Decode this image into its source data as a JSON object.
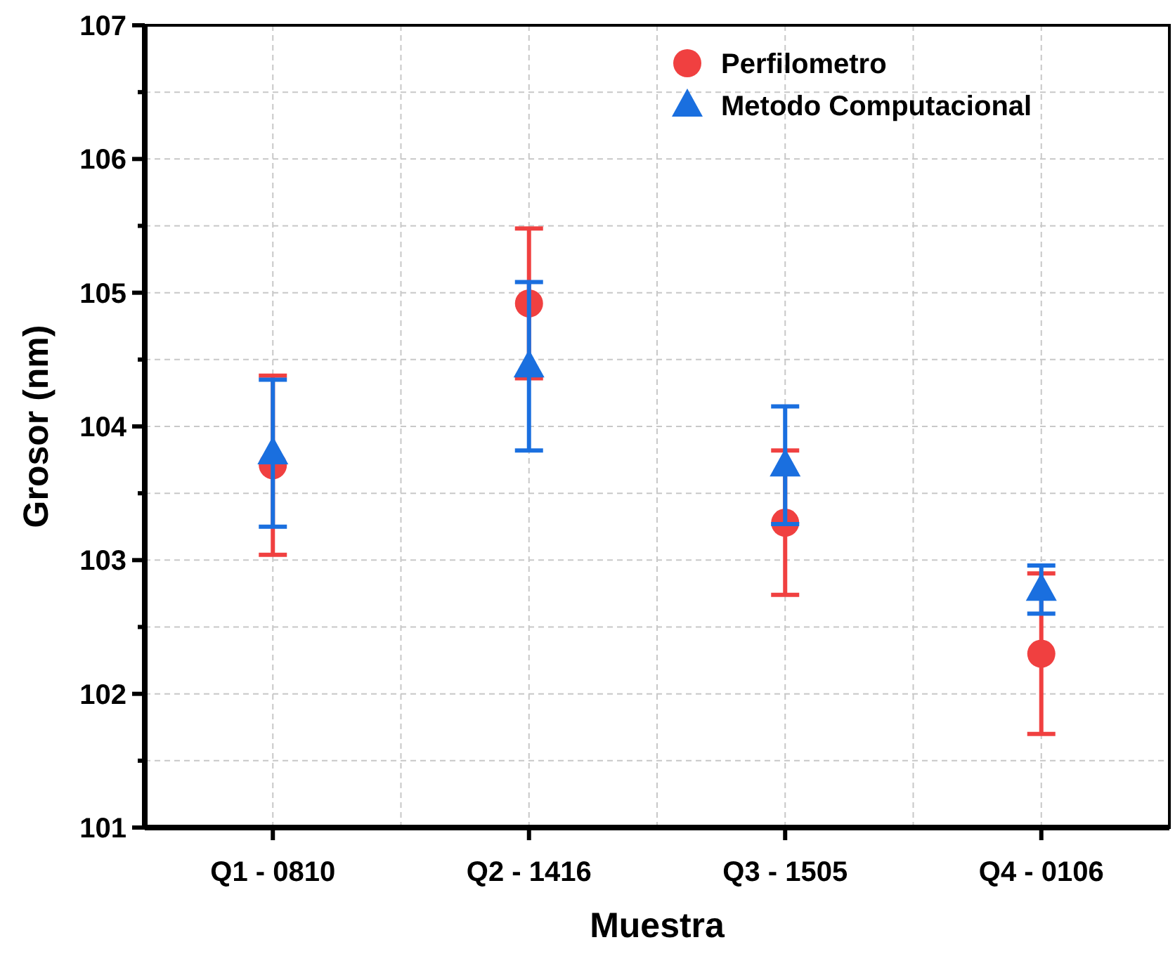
{
  "chart_data": {
    "type": "scatter",
    "xlabel": "Muestra",
    "ylabel": "Grosor (nm)",
    "categories": [
      "Q1 - 0810",
      "Q2 - 1416",
      "Q3 - 1505",
      "Q4 - 0106"
    ],
    "series": [
      {
        "name": "Perfilometro",
        "color": "#f04040",
        "marker": "circle",
        "values": [
          103.71,
          104.92,
          103.28,
          102.3
        ],
        "errors": [
          0.67,
          0.56,
          0.54,
          0.6
        ]
      },
      {
        "name": "Metodo Computacional",
        "color": "#1a6fdf",
        "marker": "triangle",
        "values": [
          103.8,
          104.45,
          103.71,
          102.78
        ],
        "errors": [
          0.55,
          0.63,
          0.44,
          0.18
        ]
      }
    ],
    "ylim": [
      101,
      107
    ],
    "yticks": [
      101,
      {
        "value": 101.5,
        "label": null
      },
      102,
      {
        "value": 102.5,
        "label": null
      },
      103,
      {
        "value": 103.5,
        "label": null
      },
      104,
      {
        "value": 104.5,
        "label": null
      },
      105,
      {
        "value": 105.5,
        "label": null
      },
      106,
      {
        "value": 106.5,
        "label": null
      },
      107
    ],
    "grid": true,
    "legend": "top right"
  }
}
